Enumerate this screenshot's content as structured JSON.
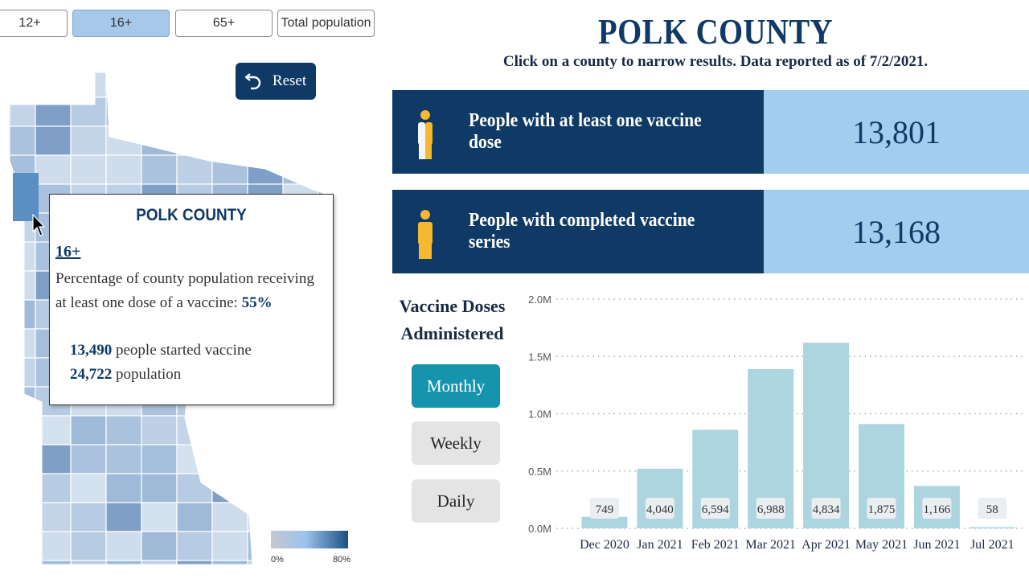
{
  "age_filters": [
    {
      "label": "12+",
      "active": false
    },
    {
      "label": "16+",
      "active": true
    },
    {
      "label": "65+",
      "active": false
    },
    {
      "label": "Total population",
      "active": false
    }
  ],
  "reset_label": "Reset",
  "map_legend": {
    "min_label": "0%",
    "max_label": "80%"
  },
  "tooltip": {
    "county": "POLK COUNTY",
    "age_group": "16+",
    "description": "Percentage of county population receiving at least one dose of a vaccine:",
    "percent": "55%",
    "started_count": "13,490",
    "started_text": "people started vaccine",
    "population_count": "24,722",
    "population_text": "population"
  },
  "header": {
    "county_title": "POLK COUNTY",
    "subtitle": "Click on a county to narrow results. Data reported as of 7/2/2021."
  },
  "stats": [
    {
      "label": "People with at least one vaccine dose",
      "value": "13,801",
      "icon": "person-icon",
      "icon_colors": [
        "#f5f5f5",
        "#f5b82e"
      ]
    },
    {
      "label": "People with completed vaccine series",
      "value": "13,168",
      "icon": "person-icon",
      "icon_colors": [
        "#f5b82e",
        "#f5b82e"
      ]
    }
  ],
  "doses_title": "Vaccine Doses Administered",
  "frequency_options": [
    {
      "label": "Monthly",
      "active": true
    },
    {
      "label": "Weekly",
      "active": false
    },
    {
      "label": "Daily",
      "active": false
    }
  ],
  "colors": {
    "navy": "#0f3a66",
    "light_blue": "#a3cdee",
    "teal": "#1694ad",
    "bar": "#acd5e0"
  },
  "chart_data": {
    "type": "bar",
    "categories": [
      "Dec 2020",
      "Jan 2021",
      "Feb 2021",
      "Mar 2021",
      "Apr 2021",
      "May 2021",
      "Jun 2021",
      "Jul 2021"
    ],
    "values": [
      0.1,
      0.52,
      0.86,
      1.39,
      1.62,
      0.91,
      0.37,
      0.01
    ],
    "data_labels": [
      "749",
      "4,040",
      "6,594",
      "6,988",
      "4,834",
      "1,875",
      "1,166",
      "58"
    ],
    "y_ticks": [
      "2.0M",
      "1.5M",
      "1.0M",
      "0.5M",
      "0.0M"
    ],
    "y_tick_values": [
      2.0,
      1.5,
      1.0,
      0.5,
      0.0
    ],
    "ylim": [
      0,
      2.0
    ],
    "grid": true
  }
}
